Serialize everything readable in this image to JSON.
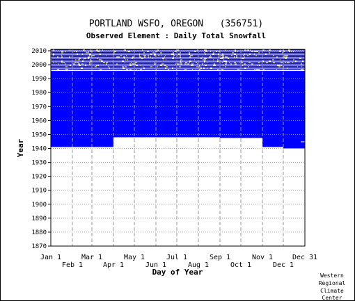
{
  "chart_data": {
    "type": "heatmap",
    "title": "PORTLAND WSFO, OREGON   (356751)",
    "subtitle": "Observed Element : Daily Total Snowfall",
    "xlabel": "Day of Year",
    "ylabel": "Year",
    "x_range_days": [
      1,
      365
    ],
    "ylim": [
      1870,
      2011
    ],
    "y_ticks": [
      1870,
      1880,
      1890,
      1900,
      1910,
      1920,
      1930,
      1940,
      1950,
      1960,
      1970,
      1980,
      1990,
      2000,
      2010
    ],
    "x_ticks_top": [
      {
        "label": "Jan 1",
        "day": 1
      },
      {
        "label": "Mar 1",
        "day": 60
      },
      {
        "label": "May 1",
        "day": 121
      },
      {
        "label": "Jul 1",
        "day": 182
      },
      {
        "label": "Sep 1",
        "day": 244
      },
      {
        "label": "Nov 1",
        "day": 305
      },
      {
        "label": "Dec 31",
        "day": 365
      }
    ],
    "x_ticks_bottom": [
      {
        "label": "Feb 1",
        "day": 32
      },
      {
        "label": "Apr 1",
        "day": 91
      },
      {
        "label": "Jun 1",
        "day": 152
      },
      {
        "label": "Aug 1",
        "day": 213
      },
      {
        "label": "Oct 1",
        "day": 274
      },
      {
        "label": "Dec 1",
        "day": 335
      }
    ],
    "grid": true,
    "data_color": "#0000ff",
    "coverage": [
      {
        "start_day": 1,
        "end_day": 90,
        "start_year": 1941.0,
        "end_year": 1995.5
      },
      {
        "start_day": 91,
        "end_day": 243,
        "start_year": 1948.0,
        "end_year": 1995.5
      },
      {
        "start_day": 244,
        "end_day": 304,
        "start_year": 1947.5,
        "end_year": 1995.5
      },
      {
        "start_day": 305,
        "end_day": 334,
        "start_year": 1941.0,
        "end_year": 1995.5
      },
      {
        "start_day": 335,
        "end_day": 365,
        "start_year": 1940.0,
        "end_year": 1995.5
      }
    ],
    "recent_years": {
      "start_year": 1996,
      "end_year": 2010
    },
    "missing_day_lines": [
      {
        "start_day": 32,
        "end_day": 32,
        "year": 1946
      },
      {
        "start_day": 360,
        "end_day": 365,
        "year": 1944
      }
    ]
  },
  "credit": [
    "Western",
    "Regional",
    "Climate",
    "Center"
  ]
}
